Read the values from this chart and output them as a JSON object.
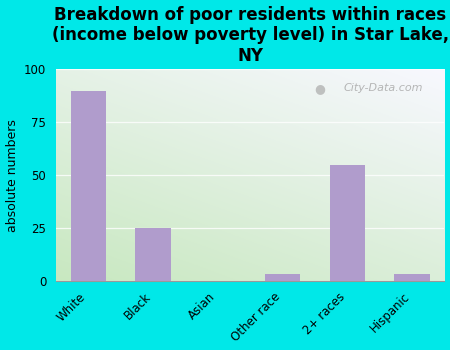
{
  "title": "Breakdown of poor residents within races\n(income below poverty level) in Star Lake,\nNY",
  "categories": [
    "White",
    "Black",
    "Asian",
    "Other race",
    "2+ races",
    "Hispanic"
  ],
  "values": [
    90,
    25,
    0,
    3,
    55,
    3
  ],
  "bar_color": "#b09ccc",
  "ylabel": "absolute numbers",
  "ylim": [
    0,
    100
  ],
  "yticks": [
    0,
    25,
    50,
    75,
    100
  ],
  "background_color": "#00e8e8",
  "grad_bottom_left": "#c8e8c0",
  "grad_top_right": "#f0f0f8",
  "watermark_text": "City-Data.com",
  "title_fontsize": 12,
  "ylabel_fontsize": 9,
  "tick_fontsize": 8.5
}
